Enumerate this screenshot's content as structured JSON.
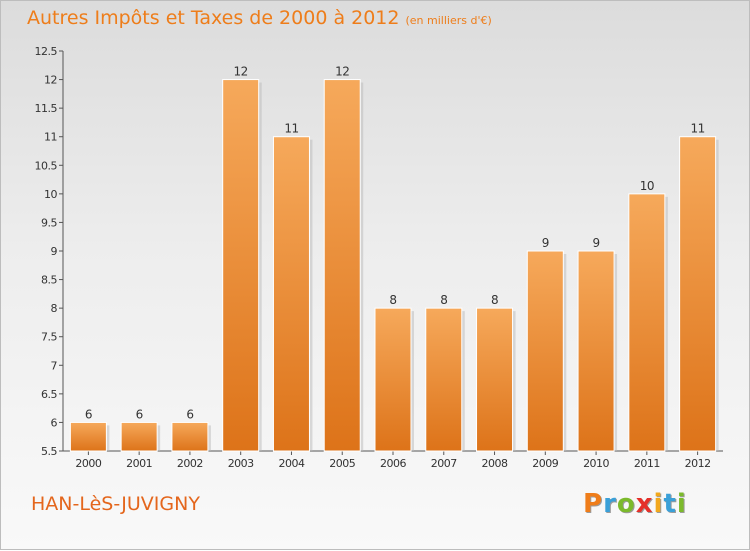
{
  "header": {
    "title": "Autres Impôts et Taxes de 2000 à 2012",
    "subtitle": "(en milliers d'€)"
  },
  "footer": {
    "town": "HAN-LèS-JUVIGNY",
    "logo_letters": [
      "P",
      "r",
      "o",
      "x",
      "i",
      "t",
      "i"
    ],
    "logo_colors": [
      "#ef7d1a",
      "#3aa0d8",
      "#7cba2c",
      "#e5302a",
      "#f2a81d",
      "#3aa0d8",
      "#7cba2c"
    ]
  },
  "colors": {
    "bar": "#ef9540",
    "bar_light": "#f6a95b",
    "bar_dark": "#dd7319",
    "accent": "#ee7d1a"
  },
  "chart_data": {
    "type": "bar",
    "title": "Autres Impôts et Taxes de 2000 à 2012",
    "subtitle": "(en milliers d'€)",
    "categories": [
      "2000",
      "2001",
      "2002",
      "2003",
      "2004",
      "2005",
      "2006",
      "2007",
      "2008",
      "2009",
      "2010",
      "2011",
      "2012"
    ],
    "values": [
      6,
      6,
      6,
      12,
      11,
      12,
      8,
      8,
      8,
      9,
      9,
      10,
      11
    ],
    "data_labels": [
      "6",
      "6",
      "6",
      "12",
      "11",
      "12",
      "8",
      "8",
      "8",
      "9",
      "9",
      "10",
      "11"
    ],
    "ylim": [
      5.5,
      12.5
    ],
    "yticks": [
      5.5,
      6,
      6.5,
      7,
      7.5,
      8,
      8.5,
      9,
      9.5,
      10,
      10.5,
      11,
      11.5,
      12,
      12.5
    ],
    "ytick_labels": [
      "5.5",
      "6",
      "6.5",
      "7",
      "7.5",
      "8",
      "8.5",
      "9",
      "9.5",
      "10",
      "10.5",
      "11",
      "11.5",
      "12",
      "12.5"
    ],
    "grid": false,
    "legend": false
  }
}
